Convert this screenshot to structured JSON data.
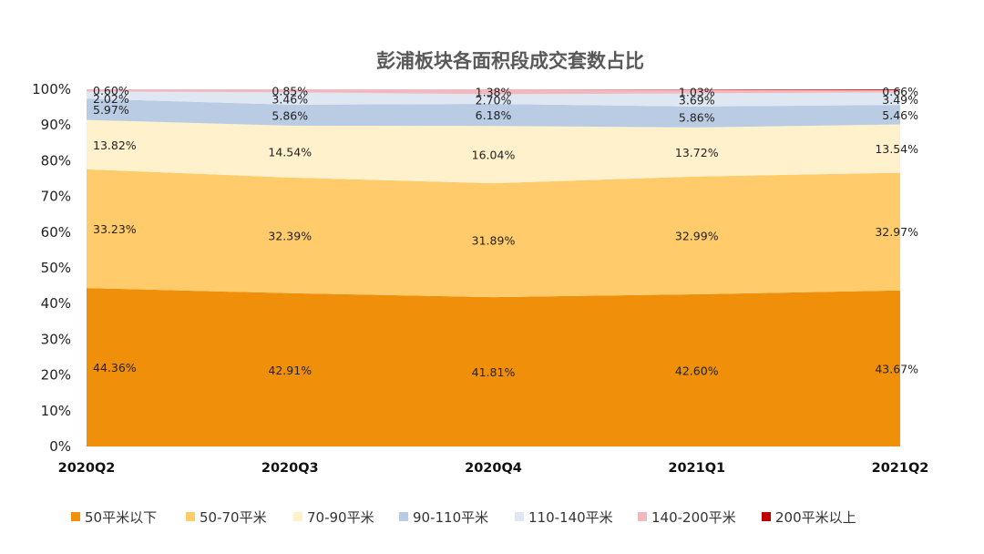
{
  "chart_data": {
    "type": "area",
    "stacked": true,
    "title": "彭浦板块各面积段成交套数占比",
    "categories": [
      "2020Q2",
      "2020Q3",
      "2020Q4",
      "2021Q1",
      "2021Q2"
    ],
    "y_ticks": [
      "0%",
      "10%",
      "20%",
      "30%",
      "40%",
      "50%",
      "60%",
      "70%",
      "80%",
      "90%",
      "100%"
    ],
    "ylim": [
      0,
      100
    ],
    "legend_position": "bottom",
    "grid": false,
    "series": [
      {
        "name": "50平米以下",
        "color": "#F0900A",
        "values": [
          44.36,
          42.91,
          41.81,
          42.6,
          43.67
        ],
        "labels": [
          "44.36%",
          "42.91%",
          "41.81%",
          "42.60%",
          "43.67%"
        ]
      },
      {
        "name": "50-70平米",
        "color": "#FFCB6B",
        "values": [
          33.23,
          32.39,
          31.89,
          32.99,
          32.97
        ],
        "labels": [
          "33.23%",
          "32.39%",
          "31.89%",
          "32.99%",
          "32.97%"
        ]
      },
      {
        "name": "70-90平米",
        "color": "#FFF1CC",
        "values": [
          13.82,
          14.54,
          16.04,
          13.72,
          13.54
        ],
        "labels": [
          "13.82%",
          "14.54%",
          "16.04%",
          "13.72%",
          "13.54%"
        ]
      },
      {
        "name": "90-110平米",
        "color": "#B9CCE4",
        "values": [
          5.97,
          5.86,
          6.18,
          5.86,
          5.46
        ],
        "labels": [
          "5.97%",
          "5.86%",
          "6.18%",
          "5.86%",
          "5.46%"
        ]
      },
      {
        "name": "110-140平米",
        "color": "#DEE7F2",
        "values": [
          2.02,
          3.46,
          2.7,
          3.69,
          3.49
        ],
        "labels": [
          "2.02%",
          "3.46%",
          "2.70%",
          "3.69%",
          "3.49%"
        ]
      },
      {
        "name": "140-200平米",
        "color": "#F2B8C0",
        "values": [
          0.6,
          0.85,
          1.38,
          1.03,
          0.66
        ],
        "labels": [
          "0.60%",
          "0.85%",
          "1.38%",
          "1.03%",
          "0.66%"
        ]
      },
      {
        "name": "200平米以上",
        "color": "#C00000",
        "values": [
          0.0,
          0.0,
          0.0,
          0.11,
          0.21
        ],
        "labels": []
      }
    ]
  }
}
